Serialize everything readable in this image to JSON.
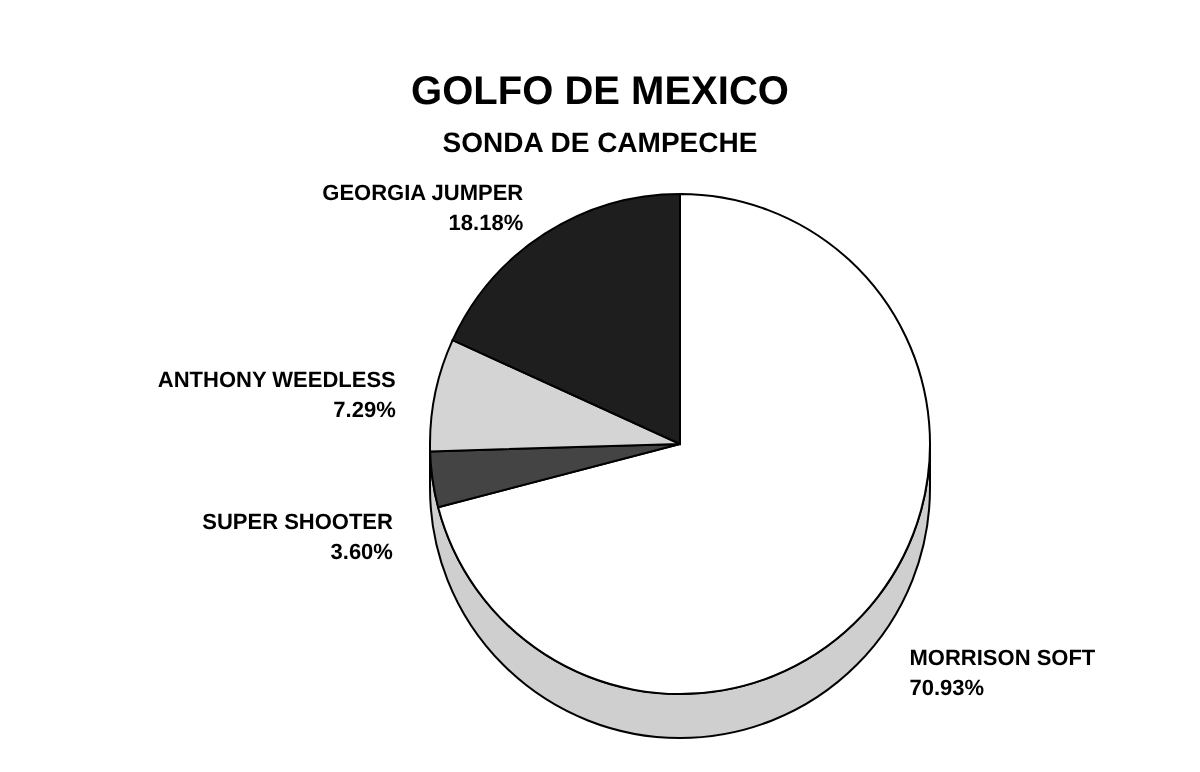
{
  "chart_data": {
    "type": "pie",
    "title": "GOLFO DE MEXICO",
    "subtitle": "SONDA DE CAMPECHE",
    "categories": [
      "MORRISON SOFT",
      "SUPER SHOOTER",
      "ANTHONY WEEDLESS",
      "GEORGIA JUMPER"
    ],
    "values": [
      70.93,
      3.6,
      7.29,
      18.18
    ],
    "value_labels": [
      "70.93%",
      "3.60%",
      "7.29%",
      "18.18%"
    ],
    "colors": [
      "#ffffff",
      "#444444",
      "#d4d4d4",
      "#1e1e1e"
    ]
  }
}
